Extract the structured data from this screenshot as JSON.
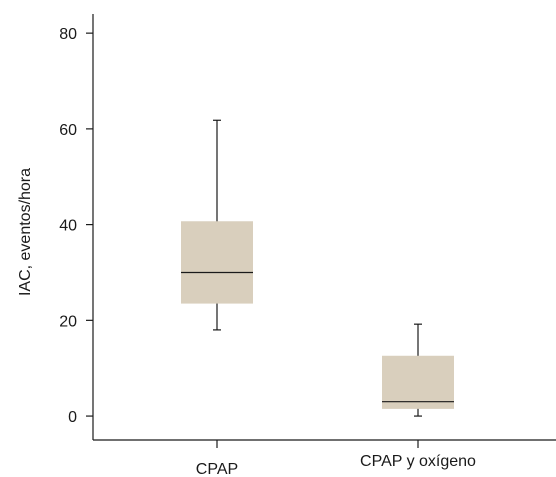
{
  "chart_data": {
    "type": "boxplot",
    "title": "",
    "xlabel": "",
    "ylabel": "IAC, eventos/hora",
    "ylim": [
      -5,
      84
    ],
    "yticks": [
      0,
      20,
      40,
      60,
      80
    ],
    "grid": false,
    "box_color": "#d9cfbd",
    "categories": [
      "CPAP",
      "CPAP y oxígeno"
    ],
    "boxes": [
      {
        "category": "CPAP",
        "min": 18,
        "q1": 23.5,
        "median": 30,
        "q3": 40.7,
        "max": 61.8
      },
      {
        "category": "CPAP y oxígeno",
        "min": 0,
        "q1": 1.5,
        "median": 3,
        "q3": 12.6,
        "max": 19.2
      }
    ]
  }
}
